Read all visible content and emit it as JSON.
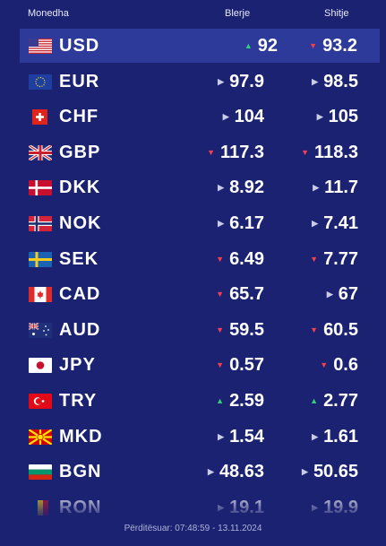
{
  "header": {
    "currency": "Monedha",
    "buy": "Blerje",
    "sell": "Shitje"
  },
  "rows": [
    {
      "code": "USD",
      "flag": "us-flag-icon",
      "buy": "92",
      "buy_trend": "up",
      "sell": "93.2",
      "sell_trend": "down",
      "selected": true
    },
    {
      "code": "EUR",
      "flag": "eu-flag-icon",
      "buy": "97.9",
      "buy_trend": "flat",
      "sell": "98.5",
      "sell_trend": "flat"
    },
    {
      "code": "CHF",
      "flag": "ch-flag-icon",
      "buy": "104",
      "buy_trend": "flat",
      "sell": "105",
      "sell_trend": "flat"
    },
    {
      "code": "GBP",
      "flag": "gb-flag-icon",
      "buy": "117.3",
      "buy_trend": "down",
      "sell": "118.3",
      "sell_trend": "down"
    },
    {
      "code": "DKK",
      "flag": "dk-flag-icon",
      "buy": "8.92",
      "buy_trend": "flat",
      "sell": "11.7",
      "sell_trend": "flat"
    },
    {
      "code": "NOK",
      "flag": "no-flag-icon",
      "buy": "6.17",
      "buy_trend": "flat",
      "sell": "7.41",
      "sell_trend": "flat"
    },
    {
      "code": "SEK",
      "flag": "se-flag-icon",
      "buy": "6.49",
      "buy_trend": "down",
      "sell": "7.77",
      "sell_trend": "down"
    },
    {
      "code": "CAD",
      "flag": "ca-flag-icon",
      "buy": "65.7",
      "buy_trend": "down",
      "sell": "67",
      "sell_trend": "flat"
    },
    {
      "code": "AUD",
      "flag": "au-flag-icon",
      "buy": "59.5",
      "buy_trend": "down",
      "sell": "60.5",
      "sell_trend": "down"
    },
    {
      "code": "JPY",
      "flag": "jp-flag-icon",
      "buy": "0.57",
      "buy_trend": "down",
      "sell": "0.6",
      "sell_trend": "down"
    },
    {
      "code": "TRY",
      "flag": "tr-flag-icon",
      "buy": "2.59",
      "buy_trend": "up",
      "sell": "2.77",
      "sell_trend": "up"
    },
    {
      "code": "MKD",
      "flag": "mk-flag-icon",
      "buy": "1.54",
      "buy_trend": "flat",
      "sell": "1.61",
      "sell_trend": "flat"
    },
    {
      "code": "BGN",
      "flag": "bg-flag-icon",
      "buy": "48.63",
      "buy_trend": "flat",
      "sell": "50.65",
      "sell_trend": "flat"
    },
    {
      "code": "RON",
      "flag": "ro-flag-icon",
      "buy": "19.1",
      "buy_trend": "flat",
      "sell": "19.9",
      "sell_trend": "flat"
    }
  ],
  "footer": {
    "updated": "Përditësuar: 07:48:59 - 13.11.2024"
  },
  "colors": {
    "background": "#1b2272",
    "selected_row": "#2e3a99",
    "up": "#31d07a",
    "down": "#f2404f"
  }
}
